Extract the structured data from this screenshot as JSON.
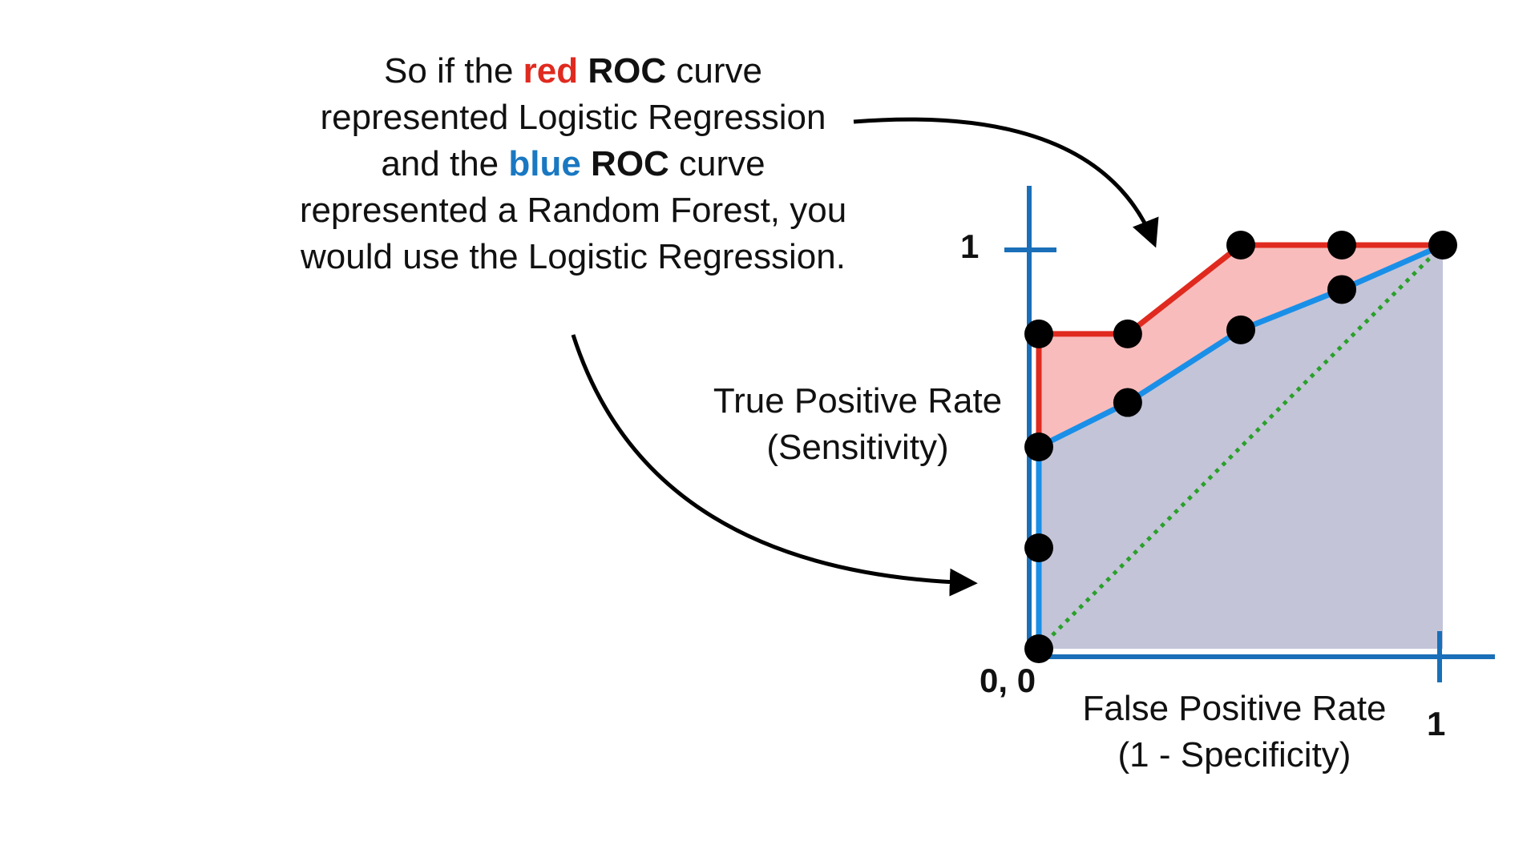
{
  "caption": {
    "p1": "So if the ",
    "red_word": "red",
    "p2": " ",
    "roc1": "ROC",
    "p3": " curve represented Logistic Regression and the ",
    "blue_word": "blue",
    "p4": " ",
    "roc2": "ROC",
    "p5": " curve represented a Random Forest, you would use the Logistic Regression."
  },
  "colors": {
    "red": "#e02a1f",
    "blue": "#1a8fe8",
    "axis": "#1a6fb8",
    "red_fill": "#f8bcbc",
    "blue_fill": "#c3c4d8",
    "diagonal": "#2aa02a",
    "point": "#000000"
  },
  "chart_data": {
    "type": "line",
    "xlabel_line1": "False Positive Rate",
    "xlabel_line2": "(1 - Specificity)",
    "ylabel_line1": "True Positive Rate",
    "ylabel_line2": "(Sensitivity)",
    "origin_label": "0, 0",
    "x_tick_label": "1",
    "y_tick_label": "1",
    "xlim": [
      0,
      1
    ],
    "ylim": [
      0,
      1
    ],
    "grid": false,
    "series": [
      {
        "color": "red",
        "x": [
          0,
          0,
          0.22,
          0.5,
          0.75,
          1
        ],
        "y": [
          0.45,
          0.78,
          0.78,
          1,
          1,
          1
        ]
      },
      {
        "color": "blue",
        "x": [
          0,
          0,
          0.22,
          0.5,
          0.75,
          1
        ],
        "y": [
          0,
          0.5,
          0.61,
          0.79,
          0.89,
          1
        ]
      },
      {
        "color": "green",
        "style": "dotted",
        "x": [
          0,
          1
        ],
        "y": [
          0,
          1
        ]
      }
    ],
    "points": [
      {
        "x": 0,
        "y": 0
      },
      {
        "x": 0,
        "y": 0.25
      },
      {
        "x": 0,
        "y": 0.5
      },
      {
        "x": 0,
        "y": 0.78
      },
      {
        "x": 0.22,
        "y": 0.78
      },
      {
        "x": 0.22,
        "y": 0.61
      },
      {
        "x": 0.5,
        "y": 1
      },
      {
        "x": 0.5,
        "y": 0.79
      },
      {
        "x": 0.75,
        "y": 1
      },
      {
        "x": 0.75,
        "y": 0.89
      },
      {
        "x": 1,
        "y": 1
      }
    ]
  }
}
